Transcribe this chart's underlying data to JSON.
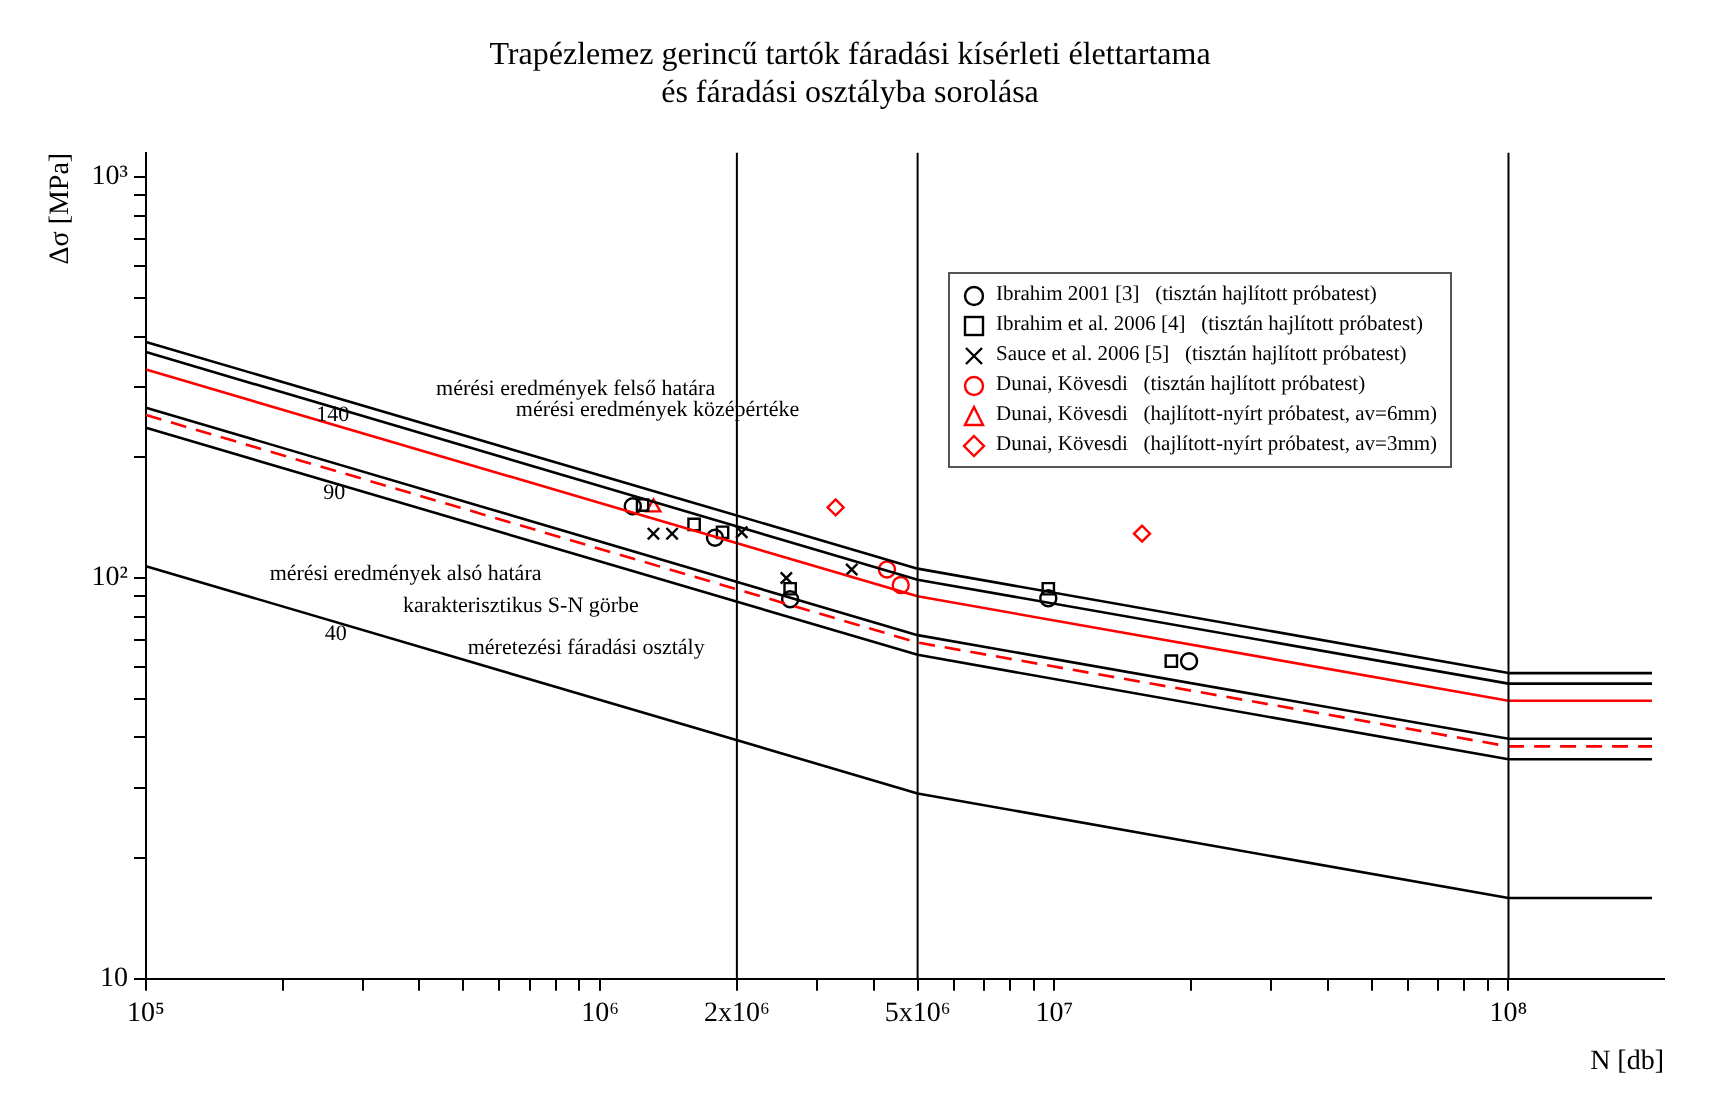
{
  "chart_data": {
    "type": "line",
    "title": "Trapézlemez gerincű tartók fáradási kísérleti élettartama\nés fáradási osztályba sorolása",
    "xlabel": "N [db]",
    "ylabel": "Δσ [MPa]",
    "log": "xy",
    "grid": false,
    "legend": "top right",
    "xlim": [
      100000,
      220000000
    ],
    "ylim": [
      10,
      1150
    ],
    "xticks": [
      {
        "value": 100000,
        "label": "10⁵"
      },
      {
        "value": 200000,
        "label": null
      },
      {
        "value": 300000,
        "label": null
      },
      {
        "value": 400000,
        "label": null
      },
      {
        "value": 500000,
        "label": null
      },
      {
        "value": 600000,
        "label": null
      },
      {
        "value": 700000,
        "label": null
      },
      {
        "value": 800000,
        "label": null
      },
      {
        "value": 900000,
        "label": null
      },
      {
        "value": 1000000,
        "label": "10⁶"
      },
      {
        "value": 2000000,
        "label": "2x10⁶"
      },
      {
        "value": 3000000,
        "label": null
      },
      {
        "value": 4000000,
        "label": null
      },
      {
        "value": 5000000,
        "label": "5x10⁶"
      },
      {
        "value": 6000000,
        "label": null
      },
      {
        "value": 7000000,
        "label": null
      },
      {
        "value": 8000000,
        "label": null
      },
      {
        "value": 9000000,
        "label": null
      },
      {
        "value": 10000000,
        "label": "10⁷"
      },
      {
        "value": 20000000,
        "label": null
      },
      {
        "value": 30000000,
        "label": null
      },
      {
        "value": 40000000,
        "label": null
      },
      {
        "value": 50000000,
        "label": null
      },
      {
        "value": 60000000,
        "label": null
      },
      {
        "value": 70000000,
        "label": null
      },
      {
        "value": 80000000,
        "label": null
      },
      {
        "value": 90000000,
        "label": null
      },
      {
        "value": 100000000,
        "label": "10⁸"
      }
    ],
    "yticks": [
      10,
      {
        "value": 20,
        "label": null
      },
      {
        "value": 30,
        "label": null
      },
      {
        "value": 40,
        "label": null
      },
      {
        "value": 50,
        "label": null
      },
      {
        "value": 60,
        "label": null
      },
      {
        "value": 70,
        "label": null
      },
      {
        "value": 80,
        "label": null
      },
      {
        "value": 90,
        "label": null
      },
      {
        "value": 100,
        "label": "10²"
      },
      {
        "value": 200,
        "label": null
      },
      {
        "value": 300,
        "label": null
      },
      {
        "value": 400,
        "label": null
      },
      {
        "value": 500,
        "label": null
      },
      {
        "value": 600,
        "label": null
      },
      {
        "value": 700,
        "label": null
      },
      {
        "value": 800,
        "label": null
      },
      {
        "value": 900,
        "label": null
      },
      {
        "value": 1000,
        "label": "10³"
      }
    ],
    "ref_lines": [
      {
        "axis": "x",
        "value": 2000000
      },
      {
        "axis": "x",
        "value": 5000000
      },
      {
        "axis": "x",
        "value": 100000000
      }
    ],
    "annotations": [
      "mérési eredmények felső határa",
      "mérési eredmények középértéke",
      "140",
      "90",
      "40",
      "mérési eredmények alsó határa",
      "karakterisztikus S-N görbe",
      "méretezési fáradási osztály"
    ],
    "series": [
      {
        "color": "#000000",
        "marker": "none",
        "x": [
          100000,
          5000000,
          100000000,
          207000000
        ],
        "values": [
          388,
          105.5,
          57.9,
          57.9
        ]
      },
      {
        "color": "#000000",
        "marker": "none",
        "x": [
          100000,
          5000000,
          100000000,
          207000000
        ],
        "values": [
          366,
          99,
          54.5,
          54.5
        ]
      },
      {
        "color": "#ff0000",
        "marker": "none",
        "x": [
          100000,
          5000000,
          100000000,
          207000000
        ],
        "values": [
          331,
          90,
          49.4,
          49.4
        ]
      },
      {
        "color": "#000000",
        "marker": "none",
        "x": [
          100000,
          5000000,
          100000000,
          207000000
        ],
        "values": [
          266,
          72,
          39.7,
          39.7
        ]
      },
      {
        "color": "#ff0000",
        "marker": "none",
        "line_style": "dashed",
        "x": [
          100000,
          5000000,
          100000000,
          207000000
        ],
        "values": [
          255,
          69,
          38,
          38
        ]
      },
      {
        "color": "#000000",
        "marker": "none",
        "x": [
          100000,
          5000000,
          100000000,
          207000000
        ],
        "values": [
          237,
          64.3,
          35.3,
          35.3
        ]
      },
      {
        "color": "#000000",
        "marker": "none",
        "x": [
          100000,
          5000000,
          100000000,
          207000000
        ],
        "values": [
          107,
          29,
          15.9,
          15.9
        ]
      },
      {
        "type": "scatter",
        "name": "Ibrahim 2001 [3]   (tisztán hajlított próbatest)",
        "color": "#000000",
        "marker": "circle",
        "x": [
          1180000,
          1790000,
          2620000,
          9700000,
          19800000
        ],
        "values": [
          151,
          126,
          88.5,
          89,
          62
        ]
      },
      {
        "type": "scatter",
        "name": "Ibrahim et al. 2006 [4]   (tisztán hajlított próbatest)",
        "color": "#000000",
        "marker": "square",
        "x": [
          1240000,
          1610000,
          1860000,
          2620000,
          9700000,
          18100000
        ],
        "values": [
          152,
          136,
          130,
          94,
          94,
          62
        ]
      },
      {
        "type": "scatter",
        "name": "Sauce et al. 2006 [5]   (tisztán hajlított próbatest)",
        "color": "#000000",
        "marker": "cross",
        "x": [
          1310000,
          1440000,
          2050000,
          2570000,
          3580000
        ],
        "values": [
          129,
          129,
          130,
          100,
          105
        ]
      },
      {
        "type": "scatter",
        "name": "Dunai, Kövesdi   (tisztán hajlított próbatest)",
        "color": "#ff0000",
        "marker": "circle",
        "x": [
          4280000,
          4590000
        ],
        "values": [
          105,
          96
        ]
      },
      {
        "type": "scatter",
        "name": "Dunai, Kövesdi   (hajlított-nyírt próbatest, av=6mm)",
        "color": "#ff0000",
        "marker": "triangle",
        "x": [
          1310000
        ],
        "values": [
          150
        ]
      },
      {
        "type": "scatter",
        "name": "Dunai, Kövesdi   (hajlított-nyírt próbatest, av=3mm)",
        "color": "#ff0000",
        "marker": "diamond",
        "x": [
          3300000,
          15600000
        ],
        "values": [
          150,
          129
        ]
      }
    ]
  }
}
